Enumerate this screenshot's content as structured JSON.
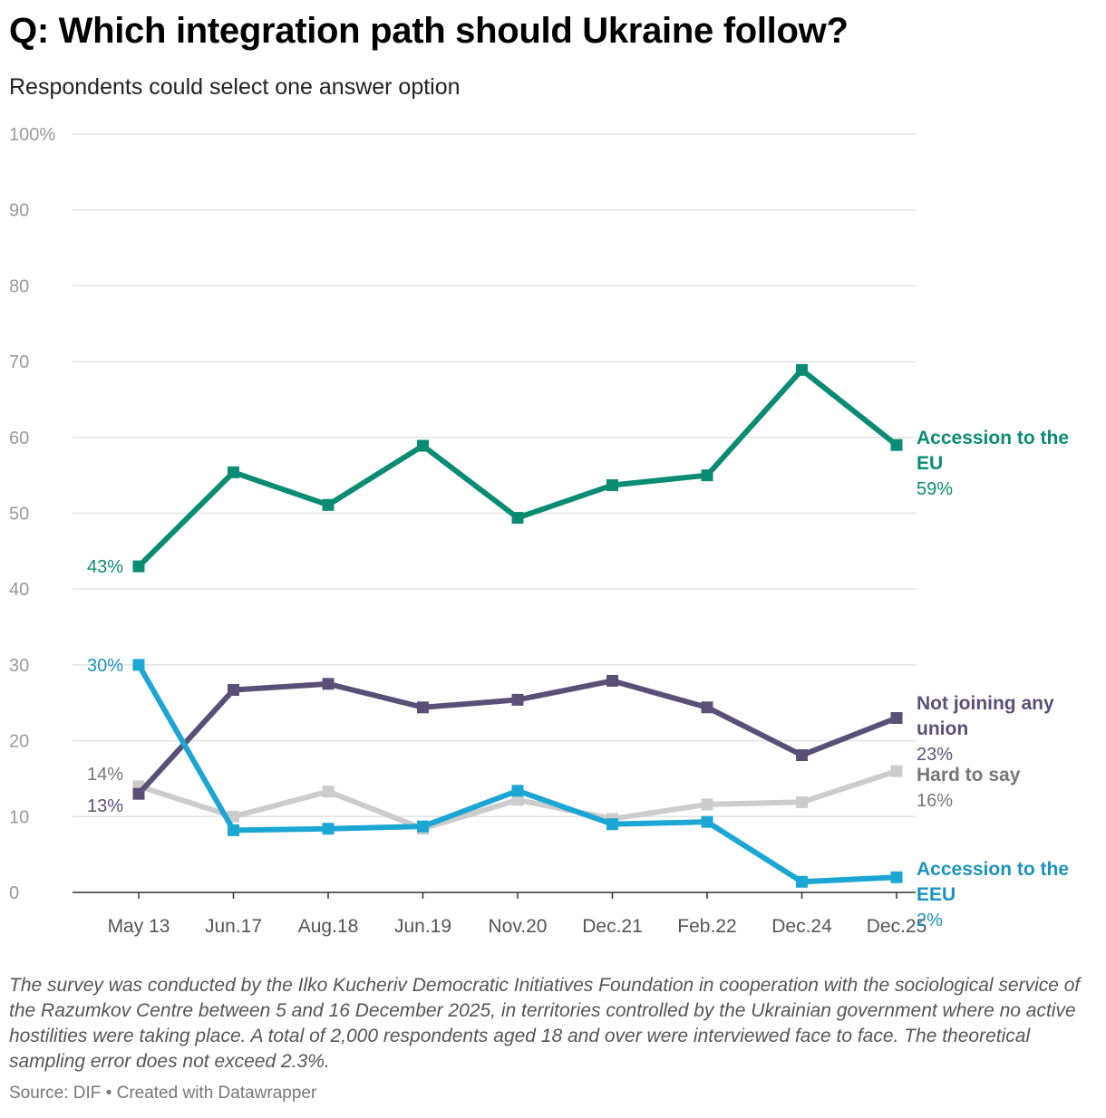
{
  "title": "Q: Which integration path should Ukraine follow?",
  "subtitle": "Respondents could select one answer option",
  "notes": "The survey was conducted by the Ilko Kucheriv Democratic Initiatives Foundation in cooperation with the sociological service of the Razumkov Centre between 5 and 16 December 2025, in territories controlled by the Ukrainian government where no active hostilities were taking place. A total of 2,000 respondents aged 18 and over were interviewed face to face. The theoretical sampling error does not exceed 2.3%.",
  "footer": {
    "source": "Source: DIF",
    "separator": "•",
    "credit": "Created with Datawrapper"
  },
  "chart_data": {
    "type": "line",
    "title": "Q: Which integration path should Ukraine follow?",
    "subtitle": "Respondents could select one answer option",
    "categories": [
      "May 13",
      "Jun.17",
      "Aug.18",
      "Jun.19",
      "Nov.20",
      "Dec.21",
      "Feb.22",
      "Dec.24",
      "Dec.25"
    ],
    "ylim": [
      0,
      100
    ],
    "y_ticks": [
      0,
      10,
      20,
      30,
      40,
      50,
      60,
      70,
      80,
      90,
      100
    ],
    "y_tick_labels": [
      "0",
      "10",
      "20",
      "30",
      "40",
      "50",
      "60",
      "70",
      "80",
      "90",
      "100%"
    ],
    "grid": true,
    "legend": "inline labels at line ends",
    "series": [
      {
        "name": "Hard to say",
        "label_lines": [
          "Hard to say"
        ],
        "color": "#cccccc",
        "label_color": "#777777",
        "values": [
          14,
          10,
          13.3,
          8.4,
          12.2,
          9.7,
          11.6,
          11.9,
          16
        ],
        "start_label": "14%",
        "end_label": "16%"
      },
      {
        "name": "Not joining any union",
        "label_lines": [
          "Not joining any",
          "union"
        ],
        "color": "#5a5077",
        "label_color": "#5a5077",
        "values": [
          13,
          26.7,
          27.5,
          24.4,
          25.4,
          27.9,
          24.4,
          18.1,
          23
        ],
        "start_label": "13%",
        "end_label": "23%"
      },
      {
        "name": "Accession to the EEU",
        "label_lines": [
          "Accession to the",
          "EEU"
        ],
        "color": "#1ba6d4",
        "label_color": "#1b93bf",
        "values": [
          30,
          8.2,
          8.4,
          8.7,
          13.4,
          9,
          9.3,
          1.4,
          2
        ],
        "start_label": "30%",
        "end_label": "2%"
      },
      {
        "name": "Accession to the EU",
        "label_lines": [
          "Accession to the",
          "EU"
        ],
        "color": "#0a8c74",
        "label_color": "#0a8c74",
        "values": [
          43,
          55.4,
          51.1,
          58.9,
          49.4,
          53.7,
          55,
          68.9,
          59
        ],
        "start_label": "43%",
        "end_label": "59%"
      }
    ]
  }
}
